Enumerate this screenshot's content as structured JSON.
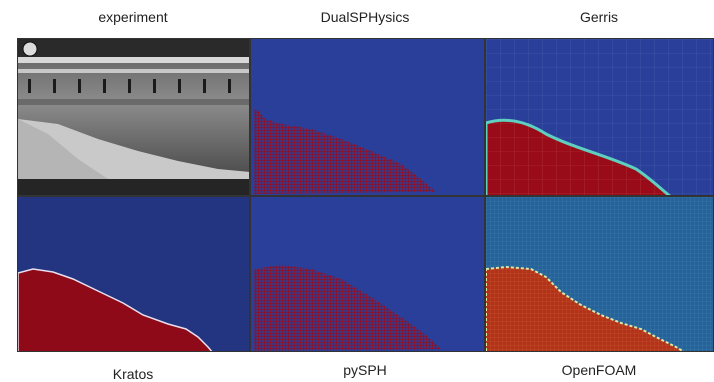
{
  "panels": {
    "experiment": {
      "label": "experiment"
    },
    "dualsphysics": {
      "label": "DualSPHysics"
    },
    "gerris": {
      "label": "Gerris"
    },
    "kratos": {
      "label": "Kratos"
    },
    "pysph": {
      "label": "pySPH"
    },
    "openfoam": {
      "label": "OpenFOAM"
    }
  },
  "colors": {
    "background_fluid_domain": "#2a3f9a",
    "water": "#9a0b1a",
    "kratos_bg": "#233580",
    "openfoam_bg": "#27609a"
  }
}
